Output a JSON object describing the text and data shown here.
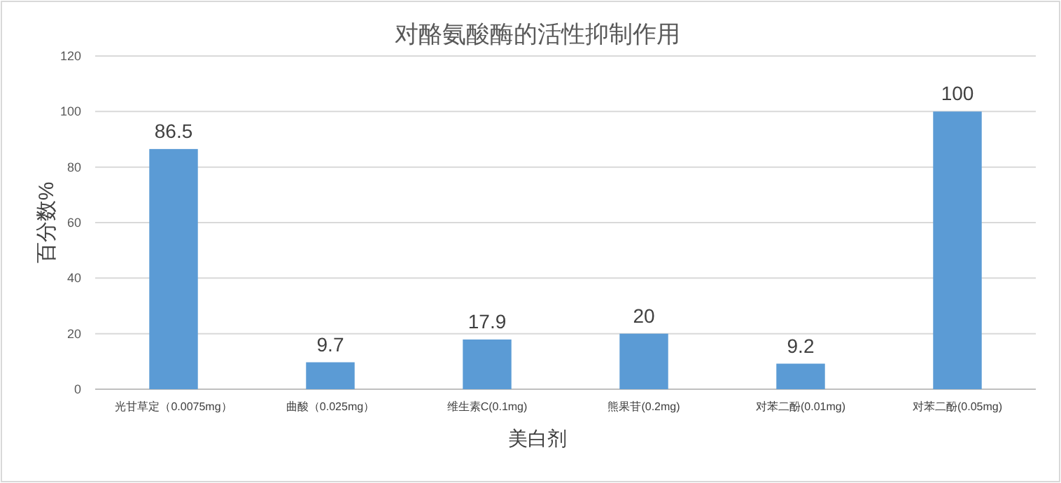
{
  "chart_data": {
    "type": "bar",
    "title": "对酪氨酸酶的活性抑制作用",
    "xlabel": "美白剂",
    "ylabel": "百分数%",
    "categories": [
      "光甘草定（0.0075mg）",
      "曲酸（0.025mg）",
      "维生素C(0.1mg)",
      "熊果苷(0.2mg)",
      "对苯二酚(0.01mg)",
      "对苯二酚(0.05mg)"
    ],
    "values": [
      86.5,
      9.7,
      17.9,
      20,
      9.2,
      100
    ],
    "color": "#5b9bd5",
    "ylim": [
      0,
      120
    ],
    "yticks": [
      0,
      20,
      40,
      60,
      80,
      100,
      120
    ],
    "grid": "y",
    "data_labels": true
  }
}
